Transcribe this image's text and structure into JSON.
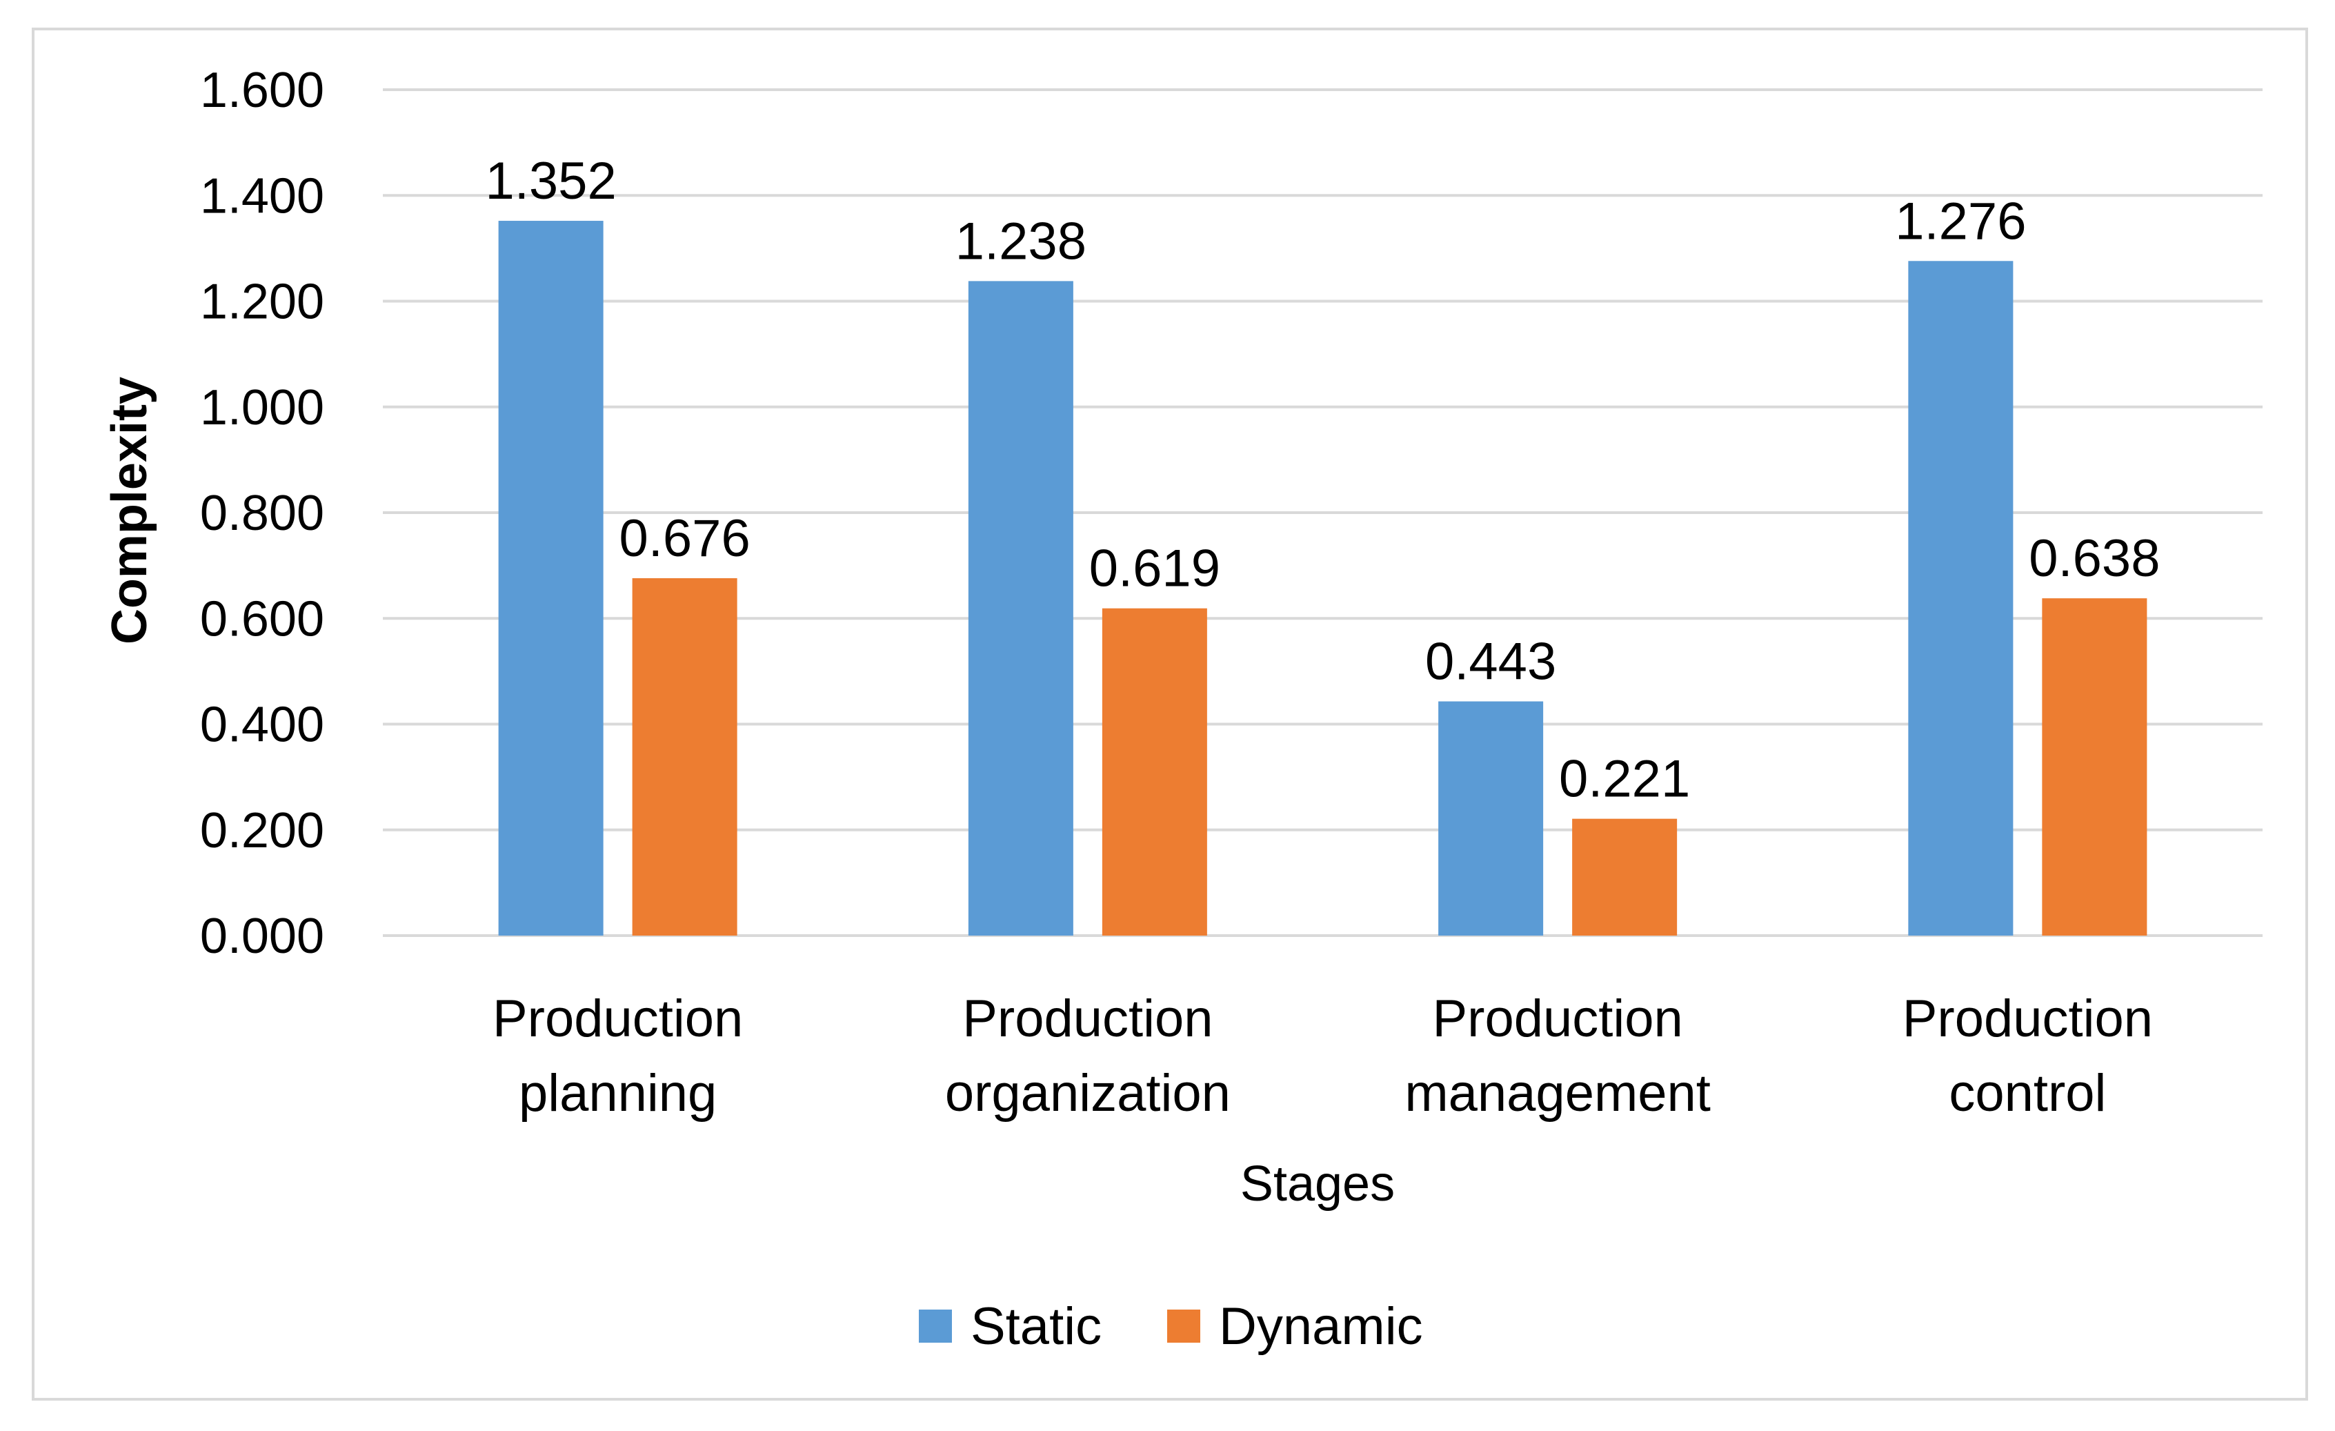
{
  "chart_data": {
    "type": "bar",
    "title": "",
    "xlabel": "Stages",
    "ylabel": "Complexity",
    "ylim": [
      0,
      1.6
    ],
    "yticks": [
      "0.000",
      "0.200",
      "0.400",
      "0.600",
      "0.800",
      "1.000",
      "1.200",
      "1.400",
      "1.600"
    ],
    "grid": true,
    "legend_position": "bottom",
    "categories": [
      [
        "Production",
        "planning"
      ],
      [
        "Production",
        "organization"
      ],
      [
        "Production",
        "management"
      ],
      [
        "Production",
        "control"
      ]
    ],
    "series": [
      {
        "name": "Static",
        "color": "#5b9bd5",
        "values": [
          1.352,
          1.238,
          0.443,
          1.276
        ],
        "labels": [
          "1.352",
          "1.238",
          "0.443",
          "1.276"
        ]
      },
      {
        "name": "Dynamic",
        "color": "#ed7d31",
        "values": [
          0.676,
          0.619,
          0.221,
          0.638
        ],
        "labels": [
          "0.676",
          "0.619",
          "0.221",
          "0.638"
        ]
      }
    ]
  }
}
